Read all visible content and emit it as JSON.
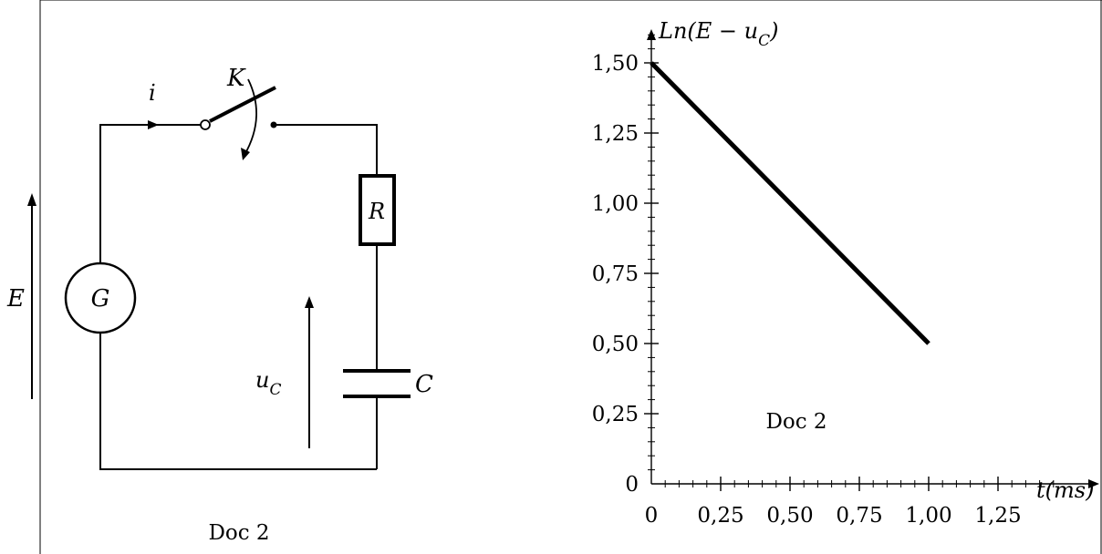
{
  "circuit": {
    "generator_label": "G",
    "emf_label": "E",
    "current_label": "i",
    "switch_label": "K",
    "resistor_label": "R",
    "capacitor_label": "C",
    "capacitor_voltage_label": "u",
    "capacitor_voltage_sub": "C",
    "caption": "Doc 2"
  },
  "chart_data": {
    "type": "line",
    "ylabel_main": "Ln(E − u",
    "ylabel_sub": "C",
    "ylabel_close": ")",
    "xlabel": "t(ms)",
    "caption": "Doc 2",
    "x_ticks": [
      "0",
      "0,25",
      "0,50",
      "0,75",
      "1,00",
      "1,25"
    ],
    "y_ticks": [
      "0",
      "0,25",
      "0,50",
      "0,75",
      "1,00",
      "1,25",
      "1,50"
    ],
    "xlim": [
      0,
      1.45
    ],
    "ylim": [
      0,
      1.62
    ],
    "series": [
      {
        "x": [
          0,
          1.0
        ],
        "y": [
          1.5,
          0.5
        ]
      }
    ],
    "line_color": "#000000"
  }
}
